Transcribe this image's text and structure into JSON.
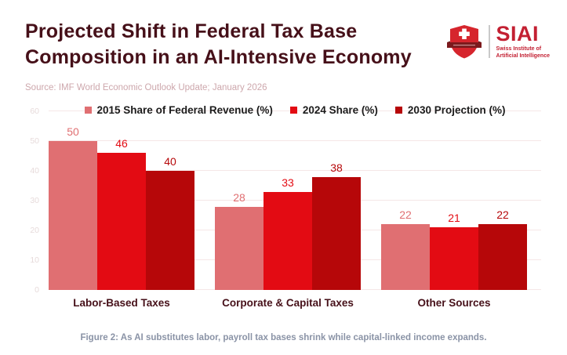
{
  "header": {
    "title_lines": [
      "Projected Shift in Federal Tax Base",
      "Composition in an AI-Intensive Economy"
    ],
    "source": "Source: IMF World Economic Outlook Update; January 2026"
  },
  "logo": {
    "acronym": "SIAI",
    "subtitle_line1": "Swiss Institute of",
    "subtitle_line2": "Artificial Intelligence",
    "icon": "swiss-shield-icon"
  },
  "chart_data": {
    "type": "bar",
    "title": "",
    "categories": [
      "Labor-Based Taxes",
      "Corporate & Capital Taxes",
      "Other Sources"
    ],
    "series": [
      {
        "name": "2015 Share of Federal Revenue (%)",
        "color": "#e06f72",
        "values": [
          50,
          28,
          22
        ]
      },
      {
        "name": "2024 Share (%)",
        "color": "#e30b13",
        "values": [
          46,
          33,
          21
        ]
      },
      {
        "name": "2030 Projection (%)",
        "color": "#b60709",
        "values": [
          40,
          38,
          22
        ]
      }
    ],
    "xlabel": "",
    "ylabel": "",
    "ylim": [
      0,
      60
    ],
    "yticks": [
      0,
      10,
      20,
      30,
      40,
      50,
      60
    ],
    "grid": true,
    "legend_position": "top",
    "data_labels": true
  },
  "caption": "Figure 2: As AI substitutes labor, payroll tax bases shrink while capital-linked income expands.",
  "colors": {
    "title": "#461019",
    "source": "#cda7ac",
    "caption": "#8a93a6",
    "gridline": "#f5e7e7",
    "ytick_label": "#e7dbdb",
    "legend_text": "#1b1b1b",
    "category_label": "#461019",
    "logo_red": "#c32032",
    "shield_red": "#d6252d",
    "ribbon_dark": "#7c1a1d",
    "background": "#ffffff"
  }
}
